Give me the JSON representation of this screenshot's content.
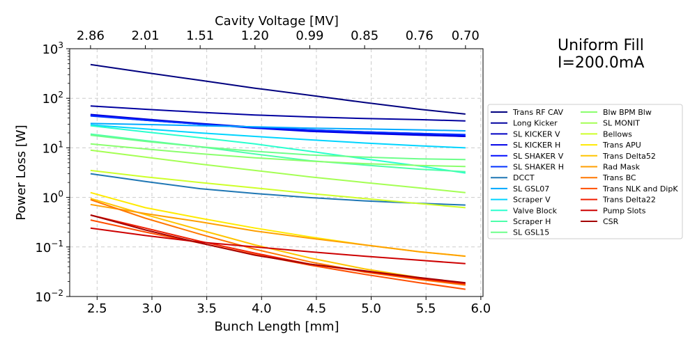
{
  "chart_data": {
    "type": "line",
    "annotation": [
      "Uniform Fill",
      "I=200.0mA"
    ],
    "xlabel": "Bunch Length [mm]",
    "ylabel": "Power Loss [W]",
    "top_xlabel": "Cavity Voltage [MV]",
    "xlim": [
      2.25,
      6.02
    ],
    "ylim": [
      0.01,
      1000
    ],
    "yscale": "log",
    "grid": true,
    "legend_placement": "right, outside plot",
    "x_ticks": [
      2.5,
      3.0,
      3.5,
      4.0,
      4.5,
      5.0,
      5.5,
      6.0
    ],
    "x_tick_labels": [
      "2.5",
      "3.0",
      "3.5",
      "4.0",
      "4.5",
      "5.0",
      "5.5",
      "6.0"
    ],
    "top_ticks": [
      2.44,
      2.94,
      3.44,
      3.94,
      4.44,
      4.94,
      5.44,
      5.86
    ],
    "top_tick_labels": [
      "2.86",
      "2.01",
      "1.51",
      "1.20",
      "0.99",
      "0.85",
      "0.76",
      "0.70"
    ],
    "y_ticks": [
      0.01,
      0.1,
      1,
      10,
      100,
      1000
    ],
    "y_tick_labels": [
      [
        "10",
        "−2"
      ],
      [
        "10",
        "−1"
      ],
      [
        "10",
        "0"
      ],
      [
        "10",
        "1"
      ],
      [
        "10",
        "2"
      ],
      [
        "10",
        "3"
      ]
    ],
    "x": [
      2.44,
      2.94,
      3.44,
      3.94,
      4.44,
      4.94,
      5.44,
      5.86
    ],
    "series": [
      {
        "name": "Trans RF CAV",
        "color": "#00007f",
        "values": [
          480,
          330,
          230,
          160,
          115,
          82,
          60,
          48
        ]
      },
      {
        "name": "Long Kicker",
        "color": "#00009f",
        "values": [
          70,
          60,
          52,
          46,
          42,
          39,
          37,
          35
        ]
      },
      {
        "name": "SL KICKER V",
        "color": "#0000c4",
        "values": [
          47,
          38,
          31,
          26,
          22,
          20,
          18.5,
          17
        ]
      },
      {
        "name": "SL KICKER H",
        "color": "#0000e8",
        "values": [
          46,
          37,
          30,
          25,
          21.5,
          19.5,
          18,
          17
        ]
      },
      {
        "name": "SL SHAKER V",
        "color": "#000cff",
        "values": [
          45,
          36,
          30,
          26,
          23,
          21,
          19.5,
          18
        ]
      },
      {
        "name": "SL SHAKER H",
        "color": "#0030ff",
        "values": [
          44,
          36,
          30,
          26,
          23,
          21,
          19.5,
          18.5
        ]
      },
      {
        "name": "DCCT",
        "color": "#1f77b4",
        "values": [
          3.0,
          2.1,
          1.5,
          1.2,
          0.99,
          0.85,
          0.76,
          0.7
        ]
      },
      {
        "name": "SL GSL07",
        "color": "#00a8ff",
        "values": [
          31,
          29.5,
          28,
          26.5,
          25,
          24,
          23,
          22
        ]
      },
      {
        "name": "Scraper V",
        "color": "#00d4ff",
        "values": [
          29,
          24,
          20,
          17,
          14.5,
          12.5,
          11,
          10
        ]
      },
      {
        "name": "Valve Block",
        "color": "#29ffce",
        "values": [
          28,
          21,
          16,
          12,
          8.5,
          6,
          4.3,
          3.1
        ]
      },
      {
        "name": "Scraper H",
        "color": "#4dffaa",
        "values": [
          19,
          14,
          10.5,
          7.5,
          5.5,
          4.5,
          3.7,
          3.3
        ]
      },
      {
        "name": "SL GSL15",
        "color": "#6dff8a",
        "values": [
          18,
          13.5,
          10.5,
          8.5,
          7.2,
          6.5,
          6,
          5.8
        ]
      },
      {
        "name": "Blw BPM Blw",
        "color": "#8aff6d",
        "values": [
          12,
          9.5,
          7.6,
          6.3,
          5.4,
          4.8,
          4.4,
          4.2
        ]
      },
      {
        "name": "SL MONIT",
        "color": "#a4ff53",
        "values": [
          9,
          6.5,
          4.7,
          3.5,
          2.6,
          2.0,
          1.55,
          1.25
        ]
      },
      {
        "name": "Bellows",
        "color": "#ceff29",
        "values": [
          3.5,
          2.6,
          2.0,
          1.55,
          1.2,
          0.95,
          0.75,
          0.62
        ]
      },
      {
        "name": "Trans APU",
        "color": "#ffea00",
        "values": [
          1.25,
          0.62,
          0.38,
          0.24,
          0.16,
          0.11,
          0.08,
          0.065
        ]
      },
      {
        "name": "Trans Delta52",
        "color": "#ffc400",
        "values": [
          0.95,
          0.45,
          0.22,
          0.11,
          0.06,
          0.036,
          0.024,
          0.018
        ]
      },
      {
        "name": "Rad Mask",
        "color": "#ff9f00",
        "values": [
          0.72,
          0.47,
          0.32,
          0.21,
          0.15,
          0.11,
          0.08,
          0.065
        ]
      },
      {
        "name": "Trans BC",
        "color": "#ff7700",
        "values": [
          0.9,
          0.38,
          0.18,
          0.09,
          0.05,
          0.031,
          0.022,
          0.017
        ]
      },
      {
        "name": "Trans NLK and DipK",
        "color": "#ff4e00",
        "values": [
          0.35,
          0.2,
          0.12,
          0.07,
          0.043,
          0.028,
          0.019,
          0.014
        ]
      },
      {
        "name": "Trans Delta22",
        "color": "#f01e00",
        "values": [
          0.44,
          0.24,
          0.13,
          0.075,
          0.045,
          0.032,
          0.023,
          0.018
        ]
      },
      {
        "name": "Pump Slots",
        "color": "#cd0000",
        "values": [
          0.24,
          0.17,
          0.125,
          0.1,
          0.08,
          0.065,
          0.054,
          0.046
        ]
      },
      {
        "name": "CSR",
        "color": "#a40000",
        "values": [
          0.44,
          0.22,
          0.12,
          0.068,
          0.045,
          0.033,
          0.024,
          0.019
        ]
      }
    ]
  }
}
